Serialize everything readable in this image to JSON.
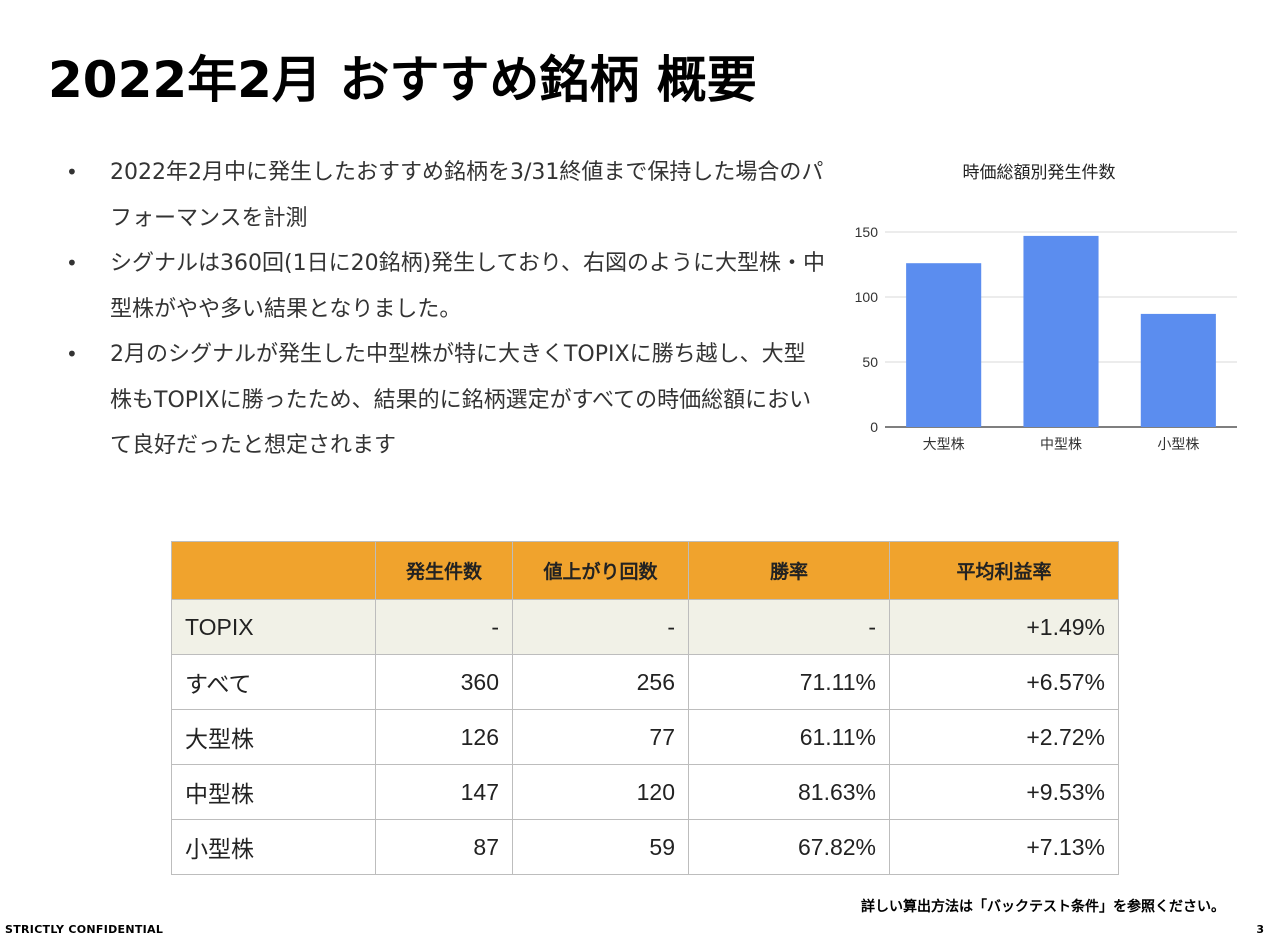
{
  "title": "2022年2月 おすすめ銘柄 概要",
  "bullets": [
    "2022年2月中に発生したおすすめ銘柄を3/31終値まで保持した場合のパフォーマンスを計測",
    "シグナルは360回(1日に20銘柄)発生しており、右図のように大型株・中型株がやや多い結果となりました。",
    "2月のシグナルが発生した中型株が特に大きくTOPIXに勝ち越し、大型株もTOPIXに勝ったため、結果的に銘柄選定がすべての時価総額において良好だったと想定されます"
  ],
  "bullet_glyph": "•",
  "chart_data": {
    "type": "bar",
    "title": "時価総額別発生件数",
    "categories": [
      "大型株",
      "中型株",
      "小型株"
    ],
    "values": [
      126,
      147,
      87
    ],
    "ylim": [
      0,
      150
    ],
    "yticks": [
      0,
      50,
      100,
      150
    ],
    "grid": true,
    "bar_color": "#5b8def"
  },
  "table": {
    "headers": [
      "",
      "発生件数",
      "値上がり回数",
      "勝率",
      "平均利益率"
    ],
    "rows": [
      [
        "TOPIX",
        "-",
        "-",
        "-",
        "+1.49%"
      ],
      [
        "すべて",
        "360",
        "256",
        "71.11%",
        "+6.57%"
      ],
      [
        "大型株",
        "126",
        "77",
        "61.11%",
        "+2.72%"
      ],
      [
        "中型株",
        "147",
        "120",
        "81.63%",
        "+9.53%"
      ],
      [
        "小型株",
        "87",
        "59",
        "67.82%",
        "+7.13%"
      ]
    ],
    "header_color": "#f0a32d",
    "highlight_row_color": "#f1f1e7"
  },
  "note": "詳しい算出方法は「バックテスト条件」を参照ください。",
  "footer": {
    "confidential": "STRICTLY CONFIDENTIAL",
    "page_number": "3"
  }
}
